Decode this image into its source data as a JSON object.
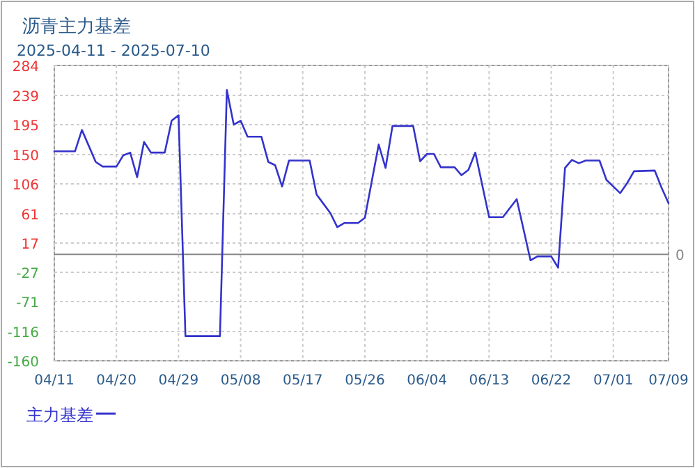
{
  "chart_data": {
    "type": "line",
    "title": "沥青主力基差",
    "subtitle": "2025-04-11 - 2025-07-10",
    "x": [
      "2025-04-11",
      "2025-04-14",
      "2025-04-15",
      "2025-04-17",
      "2025-04-18",
      "2025-04-20",
      "2025-04-21",
      "2025-04-22",
      "2025-04-23",
      "2025-04-24",
      "2025-04-25",
      "2025-04-27",
      "2025-04-28",
      "2025-04-29",
      "2025-04-30",
      "2025-05-05",
      "2025-05-06",
      "2025-05-07",
      "2025-05-08",
      "2025-05-09",
      "2025-05-11",
      "2025-05-12",
      "2025-05-13",
      "2025-05-14",
      "2025-05-15",
      "2025-05-18",
      "2025-05-19",
      "2025-05-20",
      "2025-05-21",
      "2025-05-22",
      "2025-05-23",
      "2025-05-25",
      "2025-05-26",
      "2025-05-28",
      "2025-05-29",
      "2025-05-30",
      "2025-06-02",
      "2025-06-03",
      "2025-06-04",
      "2025-06-05",
      "2025-06-06",
      "2025-06-08",
      "2025-06-09",
      "2025-06-10",
      "2025-06-11",
      "2025-06-13",
      "2025-06-15",
      "2025-06-17",
      "2025-06-19",
      "2025-06-20",
      "2025-06-22",
      "2025-06-23",
      "2025-06-24",
      "2025-06-25",
      "2025-06-26",
      "2025-06-27",
      "2025-06-29",
      "2025-06-30",
      "2025-07-02",
      "2025-07-03",
      "2025-07-04",
      "2025-07-07",
      "2025-07-08",
      "2025-07-09"
    ],
    "series": [
      {
        "name": "主力基差",
        "color": "#3333cc",
        "values": [
          155,
          155,
          187,
          139,
          132,
          132,
          149,
          153,
          116,
          169,
          153,
          153,
          201,
          209,
          -123,
          -123,
          247,
          195,
          201,
          177,
          177,
          139,
          134,
          102,
          141,
          141,
          90,
          76,
          62,
          41,
          47,
          47,
          55,
          165,
          130,
          193,
          193,
          140,
          151,
          151,
          131,
          131,
          119,
          127,
          153,
          56,
          56,
          83,
          -9,
          -3,
          -3,
          -20,
          130,
          142,
          137,
          141,
          141,
          112,
          92,
          107,
          125,
          126,
          100,
          77
        ]
      }
    ],
    "xlim": [
      "2025-04-11",
      "2025-07-09"
    ],
    "xticks": [
      {
        "value": "2025-04-11",
        "label": "04/11"
      },
      {
        "value": "2025-04-20",
        "label": "04/20"
      },
      {
        "value": "2025-04-29",
        "label": "04/29"
      },
      {
        "value": "2025-05-08",
        "label": "05/08"
      },
      {
        "value": "2025-05-17",
        "label": "05/17"
      },
      {
        "value": "2025-05-26",
        "label": "05/26"
      },
      {
        "value": "2025-06-04",
        "label": "06/04"
      },
      {
        "value": "2025-06-13",
        "label": "06/13"
      },
      {
        "value": "2025-06-22",
        "label": "06/22"
      },
      {
        "value": "2025-07-01",
        "label": "07/01"
      },
      {
        "value": "2025-07-09",
        "label": "07/09"
      }
    ],
    "ylim": [
      -160,
      284
    ],
    "yticks": [
      284,
      239,
      195,
      150,
      106,
      61,
      17,
      -27,
      -71,
      -116,
      -160
    ],
    "ref_lines": [
      {
        "axis": "y",
        "value": 0,
        "label": "0",
        "color": "#888888"
      }
    ],
    "grid": true,
    "legend": "bottom",
    "line_style": "solid",
    "marker": "none"
  }
}
